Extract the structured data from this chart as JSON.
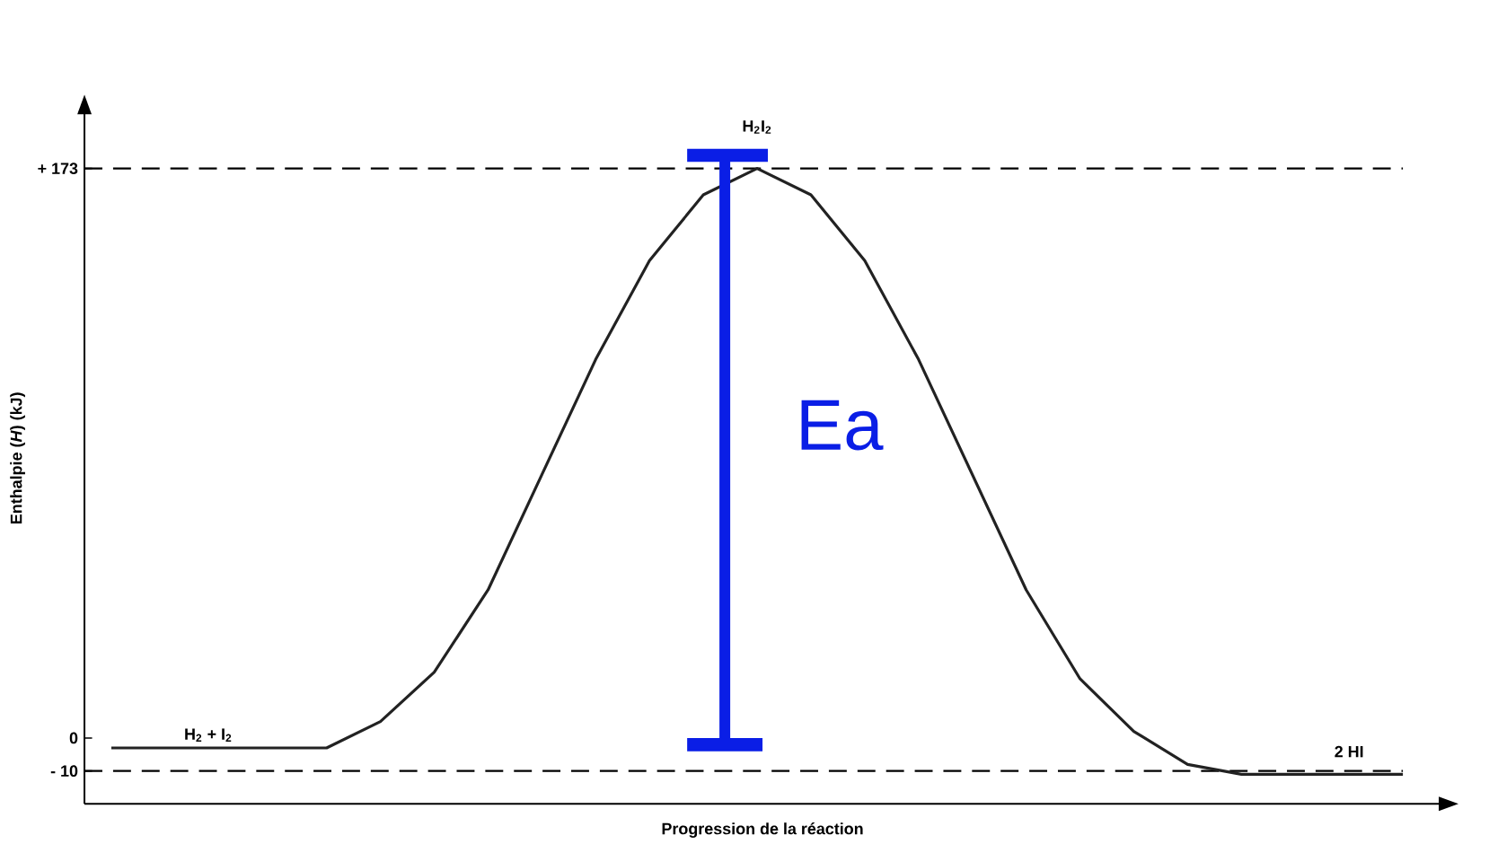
{
  "chart_data": {
    "type": "line",
    "xlabel": "Progression de la réaction",
    "ylabel": "Enthalpie (*H*) (kJ)",
    "categories": [
      null,
      null,
      null,
      null,
      null,
      null,
      null,
      null,
      null,
      null,
      null,
      null,
      null,
      null,
      null,
      null,
      null,
      null,
      null,
      null,
      null,
      null,
      null,
      null,
      null
    ],
    "series": [
      {
        "color": "#222222",
        "values": [
          -3,
          -3,
          -3,
          -3,
          -3,
          5,
          20,
          45,
          80,
          115,
          145,
          165,
          173,
          165,
          145,
          115,
          80,
          45,
          18,
          2,
          -8,
          -11,
          -11,
          -11,
          -11
        ]
      }
    ],
    "ylim": [
      -20,
      190
    ],
    "yticks": [
      {
        "value": 173,
        "label": "+ 173"
      },
      0,
      {
        "value": -10,
        "label": "- 10"
      }
    ],
    "ref_lines": [
      {
        "axis": "y",
        "value": 173,
        "line_style": "dashed"
      },
      {
        "axis": "y",
        "value": -10,
        "line_style": "dashed"
      }
    ],
    "annotations": [
      "H$_{2}$ + I$_{2}$",
      "H$_{2}$I$_{2}$",
      "2 HI",
      "Ea"
    ],
    "grid": false
  }
}
